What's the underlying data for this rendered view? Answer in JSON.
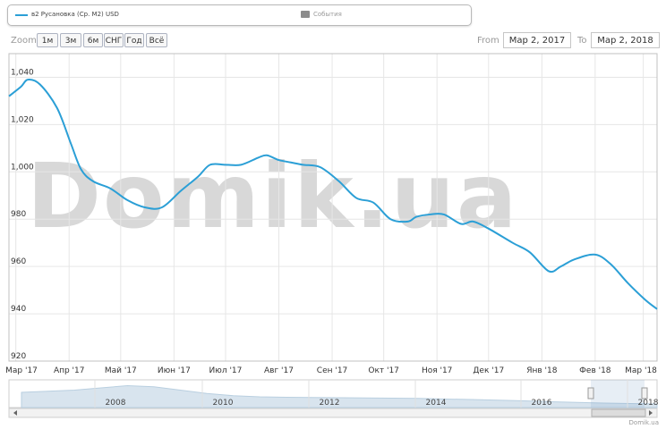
{
  "legend": {
    "series_label": "в2 Русановка (Ср. М2) USD",
    "events_label": "События",
    "series_color": "#2b9fd6",
    "events_color": "#8c8c8c"
  },
  "toolbar": {
    "zoom_label": "Zoom",
    "zoom_buttons": [
      "1м",
      "3м",
      "6м",
      "СНГ",
      "Год",
      "Всё"
    ],
    "from_label": "From",
    "from_value": "Мар 2, 2017",
    "to_label": "To",
    "to_value": "Мар 2, 2018"
  },
  "watermark": "Domik.ua",
  "credit": "Domik.ua",
  "chart_data": {
    "type": "line",
    "title": "",
    "xlabel": "",
    "ylabel": "",
    "ylim": [
      920,
      1050
    ],
    "yticks": [
      920,
      940,
      960,
      980,
      1000,
      1020,
      1040
    ],
    "ytick_labels": [
      "920",
      "940",
      "960",
      "980",
      "1,000",
      "1,020",
      "1,040"
    ],
    "x_ticks": [
      "Мар '17",
      "Апр '17",
      "Май '17",
      "Июн '17",
      "Июл '17",
      "Авг '17",
      "Сен '17",
      "Окт '17",
      "Ноя '17",
      "Дек '17",
      "Янв '18",
      "Фев '18",
      "Мар '18"
    ],
    "grid": true,
    "series": [
      {
        "name": "в2 Русановка (Ср. М2) USD",
        "color": "#2b9fd6",
        "x": [
          "2017-02-25",
          "2017-03-04",
          "2017-03-08",
          "2017-03-15",
          "2017-03-25",
          "2017-04-02",
          "2017-04-08",
          "2017-04-15",
          "2017-04-25",
          "2017-05-05",
          "2017-05-15",
          "2017-05-25",
          "2017-06-05",
          "2017-06-15",
          "2017-06-22",
          "2017-07-01",
          "2017-07-10",
          "2017-07-20",
          "2017-07-25",
          "2017-08-01",
          "2017-08-08",
          "2017-08-15",
          "2017-08-25",
          "2017-09-05",
          "2017-09-15",
          "2017-09-25",
          "2017-10-05",
          "2017-10-15",
          "2017-10-20",
          "2017-10-28",
          "2017-11-05",
          "2017-11-15",
          "2017-11-22",
          "2017-12-01",
          "2017-12-15",
          "2017-12-25",
          "2018-01-05",
          "2018-01-12",
          "2018-01-20",
          "2018-02-01",
          "2018-02-10",
          "2018-02-20",
          "2018-03-02",
          "2018-03-09"
        ],
        "values": [
          1032,
          1036,
          1039,
          1037,
          1027,
          1012,
          1001,
          996,
          993,
          988,
          985,
          985,
          992,
          998,
          1003,
          1003,
          1003,
          1006,
          1007,
          1005,
          1004,
          1003,
          1002,
          996,
          989,
          987,
          980,
          979,
          981,
          982,
          982,
          978,
          979,
          976,
          970,
          966,
          958,
          960,
          963,
          965,
          961,
          953,
          946,
          942
        ]
      }
    ],
    "navigator": {
      "years": [
        "2008",
        "2010",
        "2012",
        "2014",
        "2016",
        "2018"
      ]
    }
  }
}
